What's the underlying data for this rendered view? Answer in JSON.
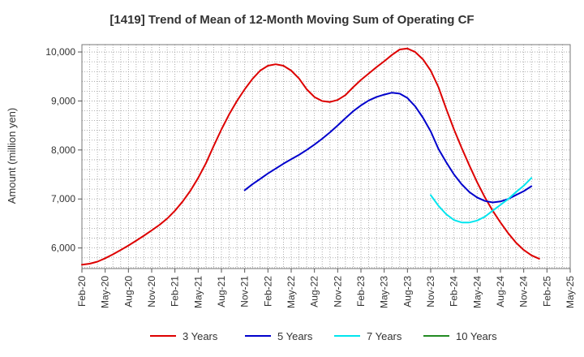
{
  "chart_data": {
    "type": "line",
    "title": "[1419]  Trend of Mean of 12-Month Moving Sum of Operating CF",
    "xlabel": "",
    "ylabel": "Amount (million yen)",
    "ylim": [
      5580,
      10150
    ],
    "yticks": [
      6000,
      7000,
      8000,
      9000,
      10000
    ],
    "ytick_labels": [
      "6,000",
      "7,000",
      "8,000",
      "9,000",
      "10,000"
    ],
    "x_start": "Feb-20",
    "x_end": "May-25",
    "xtick_labels": [
      "Feb-20",
      "May-20",
      "Aug-20",
      "Nov-20",
      "Feb-21",
      "May-21",
      "Aug-21",
      "Nov-21",
      "Feb-22",
      "May-22",
      "Aug-22",
      "Nov-22",
      "Feb-23",
      "May-23",
      "Aug-23",
      "Nov-23",
      "Feb-24",
      "May-24",
      "Aug-24",
      "Nov-24",
      "Feb-25",
      "May-25"
    ],
    "grid": true,
    "legend_position": "bottom",
    "series": [
      {
        "name": "3 Years",
        "color": "#dd0000",
        "start_index": 0,
        "values": [
          5660,
          5680,
          5720,
          5790,
          5870,
          5960,
          6050,
          6150,
          6250,
          6360,
          6470,
          6600,
          6760,
          6950,
          7170,
          7430,
          7730,
          8080,
          8420,
          8730,
          9000,
          9240,
          9450,
          9620,
          9720,
          9750,
          9720,
          9620,
          9460,
          9240,
          9080,
          9000,
          8980,
          9020,
          9120,
          9280,
          9430,
          9560,
          9690,
          9810,
          9940,
          10050,
          10070,
          10000,
          9850,
          9620,
          9280,
          8840,
          8420,
          8040,
          7680,
          7340,
          7030,
          6760,
          6520,
          6300,
          6110,
          5960,
          5850,
          5780
        ]
      },
      {
        "name": "5 Years",
        "color": "#0000cc",
        "start_index": 21,
        "values": [
          7180,
          7300,
          7410,
          7520,
          7620,
          7720,
          7810,
          7900,
          8000,
          8110,
          8230,
          8360,
          8500,
          8650,
          8790,
          8910,
          9010,
          9080,
          9130,
          9170,
          9150,
          9060,
          8890,
          8660,
          8380,
          8020,
          7750,
          7500,
          7300,
          7140,
          7030,
          6960,
          6930,
          6950,
          7000,
          7080,
          7160,
          7260
        ]
      },
      {
        "name": "7 Years",
        "color": "#00e5ee",
        "start_index": 45,
        "values": [
          7080,
          6860,
          6690,
          6570,
          6520,
          6520,
          6560,
          6640,
          6760,
          6880,
          7000,
          7140,
          7270,
          7430
        ]
      },
      {
        "name": "10 Years",
        "color": "#228b22",
        "start_index": 0,
        "values": []
      }
    ]
  }
}
